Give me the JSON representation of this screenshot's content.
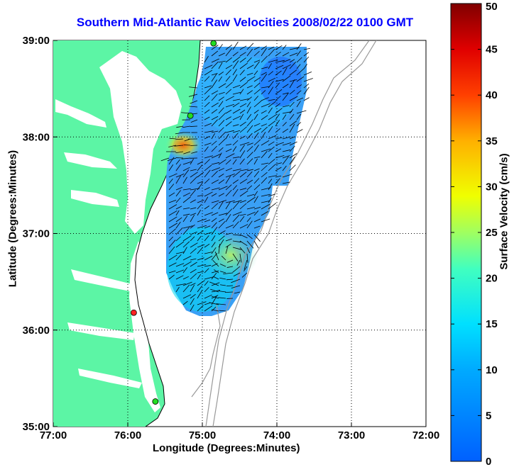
{
  "chart_data": {
    "type": "heatmap",
    "title": "Southern Mid-Atlantic Raw Velocities 2008/02/22 0100 GMT",
    "xlabel": "Longitude (Degrees:Minutes)",
    "ylabel": "Latitude (Degrees:Minutes)",
    "colorbar_label": "Surface Velocity (cm/s)",
    "x_ticks": [
      "77:00",
      "76:00",
      "75:00",
      "74:00",
      "73:00",
      "72:00"
    ],
    "y_ticks": [
      "39:00",
      "38:00",
      "37:00",
      "36:00",
      "35:00"
    ],
    "colorbar_ticks": [
      "0",
      "5",
      "10",
      "15",
      "20",
      "25",
      "30",
      "35",
      "40",
      "45",
      "50"
    ],
    "xlim": [
      -77,
      -72
    ],
    "ylim": [
      35,
      39
    ],
    "clim": [
      0,
      50
    ],
    "grid": true,
    "colormap": "jet",
    "colors": {
      "land": "#5cf5a5",
      "title": "#0000ff",
      "grid": "#000000",
      "bathymetry": "#999999"
    },
    "stations": [
      {
        "lon": -74.85,
        "lat": 38.97,
        "color": "#22dd22"
      },
      {
        "lon": -75.16,
        "lat": 38.22,
        "color": "#22dd22"
      },
      {
        "lon": -75.92,
        "lat": 36.18,
        "color": "#ff2222"
      },
      {
        "lon": -75.63,
        "lat": 35.26,
        "color": "#22dd22"
      }
    ],
    "hotspots": [
      {
        "lon": -75.25,
        "lat": 37.9,
        "speed": 38,
        "note_region": "near coast"
      },
      {
        "lon": -74.55,
        "lat": 36.75,
        "speed": 20
      }
    ]
  }
}
